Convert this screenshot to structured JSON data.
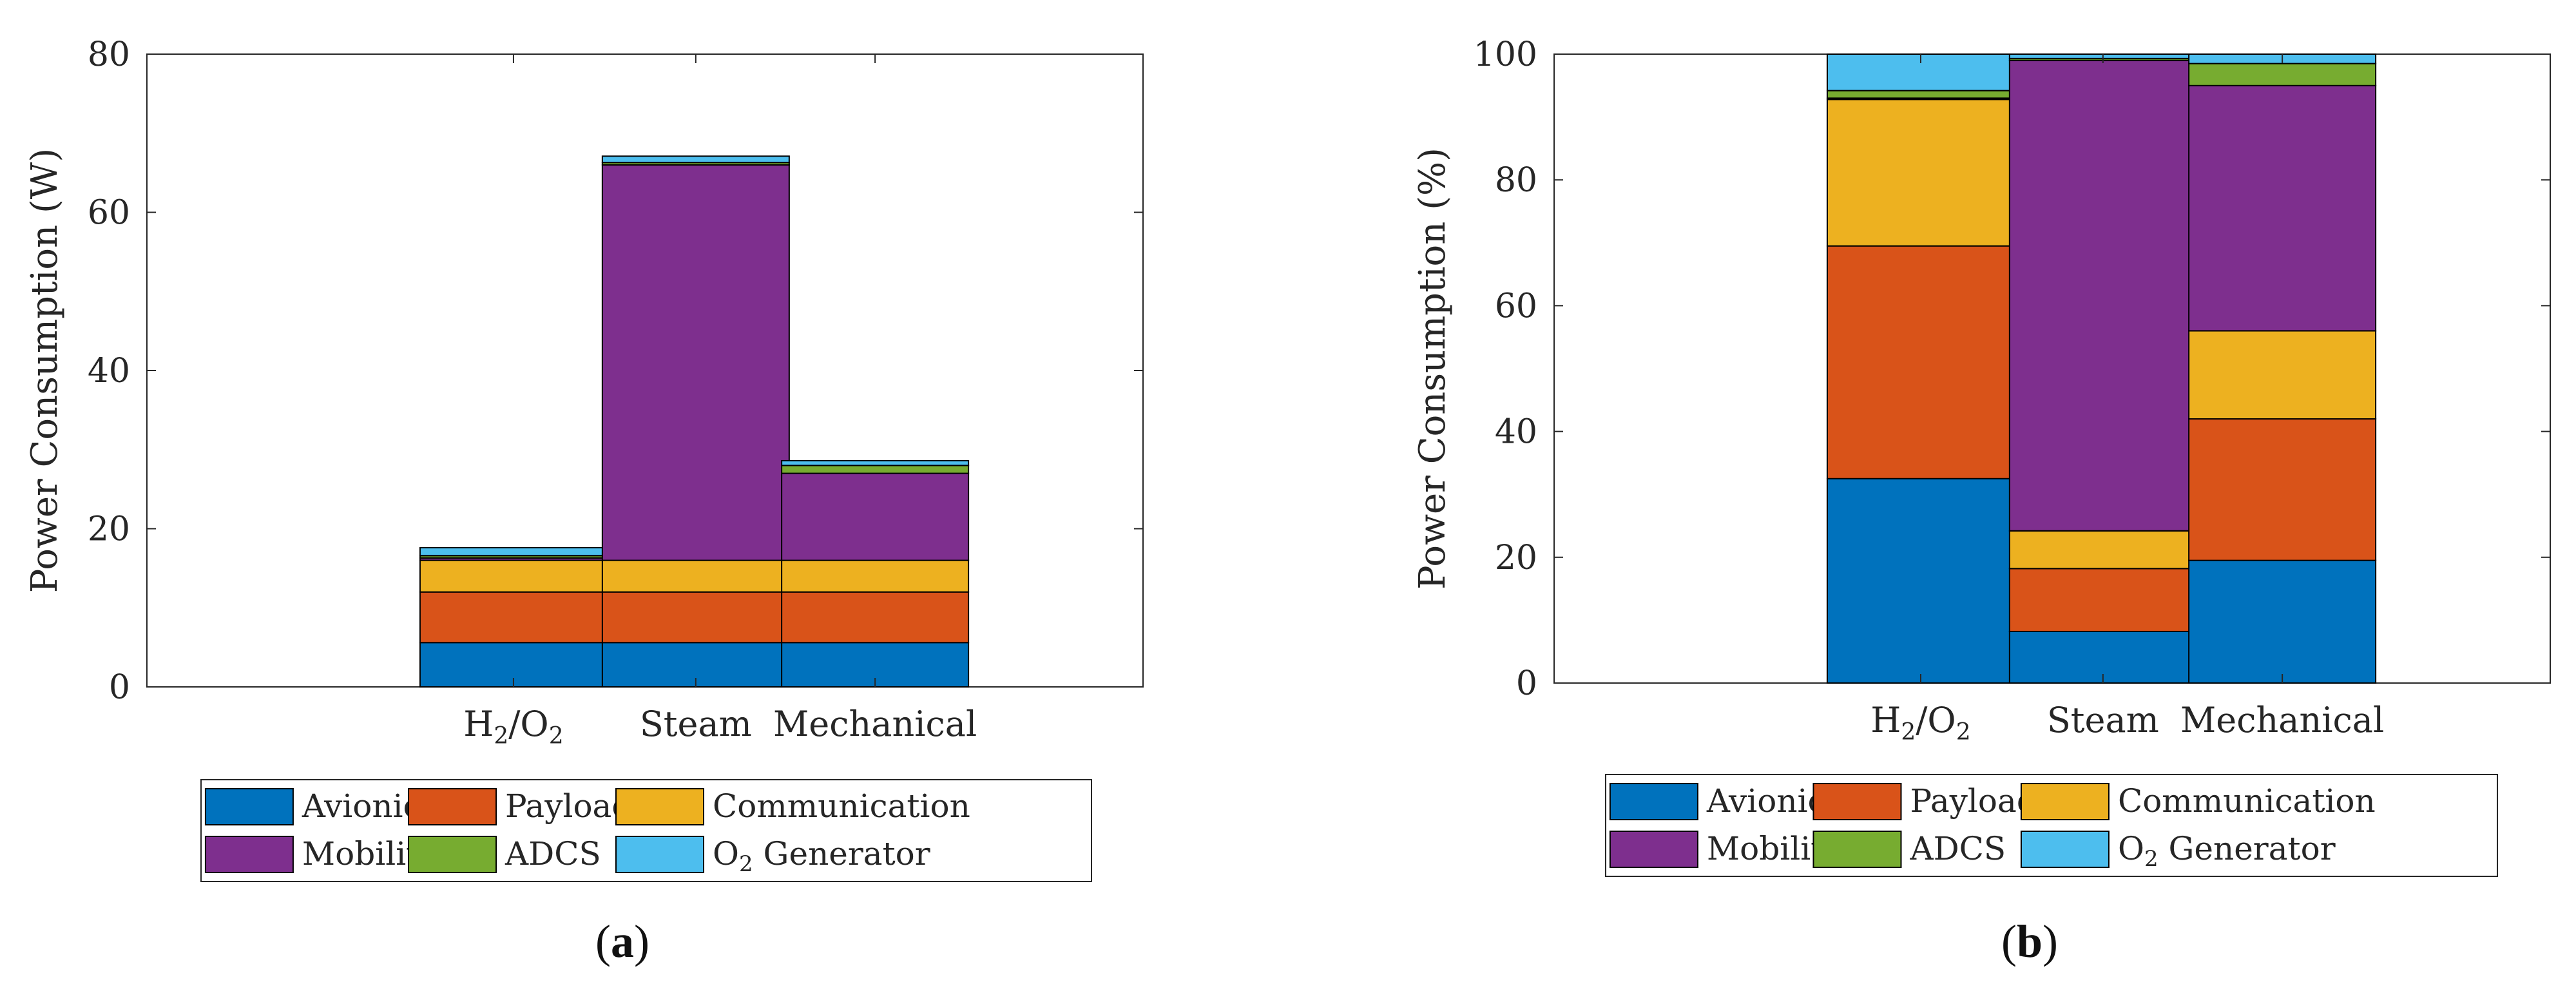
{
  "chart_data": [
    {
      "type": "bar",
      "stacked": true,
      "panel_label_open": "(",
      "panel_label_letter": "a",
      "panel_label_close": ")",
      "categories": [
        {
          "main": "H",
          "sub1": "2",
          "mid": "/O",
          "sub2": "2"
        },
        {
          "main": "Steam"
        },
        {
          "main": "Mechanical"
        }
      ],
      "series": [
        {
          "name": "Avionics",
          "color": "#0072BD",
          "values": [
            5.6,
            5.6,
            5.6
          ]
        },
        {
          "name": "Payload",
          "color": "#D95319",
          "values": [
            6.4,
            6.4,
            6.4
          ]
        },
        {
          "name": "Communication",
          "color": "#EDB120",
          "values": [
            4.0,
            4.0,
            4.0
          ]
        },
        {
          "name": "Mobility",
          "color": "#7E2F8E",
          "values": [
            0.3,
            50.0,
            11.0
          ]
        },
        {
          "name": "ADCS",
          "color": "#77AC30",
          "values": [
            0.3,
            0.3,
            1.0
          ]
        },
        {
          "name": "O2 Generator",
          "color": "#4DBEEE",
          "values": [
            1.0,
            0.8,
            0.6
          ]
        }
      ],
      "legend_labels": [
        {
          "text": "Avionics"
        },
        {
          "text": "Payload"
        },
        {
          "text": "Communication"
        },
        {
          "text": "Mobility"
        },
        {
          "text": "ADCS"
        },
        {
          "main": "O",
          "sub": "2",
          "rest": " Generator"
        }
      ],
      "ylabel": "Power Consumption (W)",
      "xlabel": "",
      "ylim": [
        0,
        80
      ],
      "yticks": [
        "0",
        "20",
        "40",
        "60",
        "80"
      ],
      "grid": false,
      "legend_placement": "bottom"
    },
    {
      "type": "bar",
      "stacked": true,
      "panel_label_open": "(",
      "panel_label_letter": "b",
      "panel_label_close": ")",
      "categories": [
        {
          "main": "H",
          "sub1": "2",
          "mid": "/O",
          "sub2": "2"
        },
        {
          "main": "Steam"
        },
        {
          "main": "Mechanical"
        }
      ],
      "series": [
        {
          "name": "Avionics",
          "color": "#0072BD",
          "values": [
            32.5,
            8.2,
            19.5
          ]
        },
        {
          "name": "Payload",
          "color": "#D95319",
          "values": [
            37.0,
            10.0,
            22.5
          ]
        },
        {
          "name": "Communication",
          "color": "#EDB120",
          "values": [
            23.3,
            6.0,
            14.0
          ]
        },
        {
          "name": "Mobility",
          "color": "#7E2F8E",
          "values": [
            0.2,
            74.8,
            39.0
          ]
        },
        {
          "name": "ADCS",
          "color": "#77AC30",
          "values": [
            1.2,
            0.3,
            3.5
          ]
        },
        {
          "name": "O2 Generator",
          "color": "#4DBEEE",
          "values": [
            5.8,
            0.7,
            1.5
          ]
        }
      ],
      "legend_labels": [
        {
          "text": "Avionics"
        },
        {
          "text": "Payload"
        },
        {
          "text": "Communication"
        },
        {
          "text": "Mobility"
        },
        {
          "text": "ADCS"
        },
        {
          "main": "O",
          "sub": "2",
          "rest": " Generator"
        }
      ],
      "ylabel": "Power Consumption (%)",
      "xlabel": "",
      "ylim": [
        0,
        100
      ],
      "yticks": [
        "0",
        "20",
        "40",
        "60",
        "80",
        "100"
      ],
      "grid": false,
      "legend_placement": "bottom"
    }
  ]
}
